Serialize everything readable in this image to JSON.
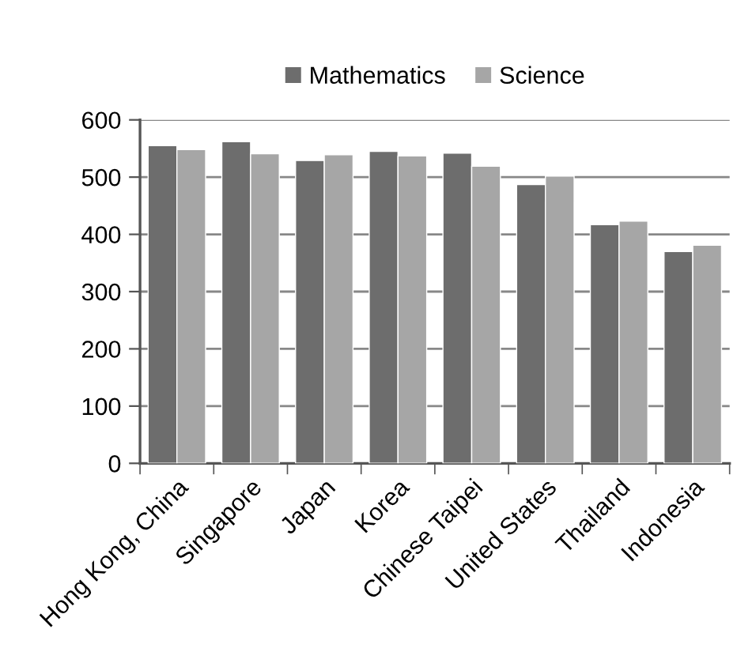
{
  "chart_data": {
    "type": "bar",
    "categories": [
      "Hong Kong, China",
      "Singapore",
      "Japan",
      "Korea",
      "Chinese Taipei",
      "United States",
      "Thailand",
      "Indonesia"
    ],
    "series": [
      {
        "name": "Mathematics",
        "color": "#6d6d6d",
        "values": [
          555,
          562,
          529,
          545,
          542,
          487,
          417,
          370
        ]
      },
      {
        "name": "Science",
        "color": "#a6a6a6",
        "values": [
          548,
          541,
          539,
          537,
          519,
          502,
          423,
          381
        ]
      }
    ],
    "ylim": [
      0,
      600
    ],
    "yticks": [
      0,
      100,
      200,
      300,
      400,
      500,
      600
    ],
    "grid": "y",
    "legend": "top"
  }
}
